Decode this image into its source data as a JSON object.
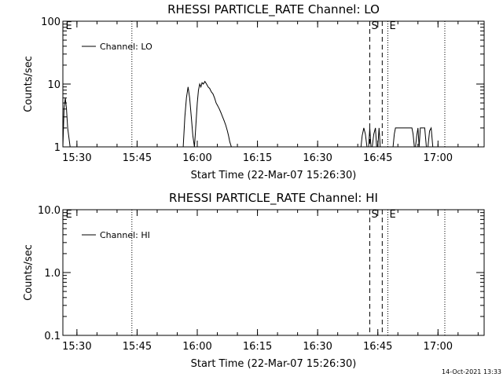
{
  "footer": {
    "timestamp": "14-Oct-2021 13:33"
  },
  "chart_data": [
    {
      "type": "line",
      "title": "RHESSI PARTICLE_RATE Channel: LO",
      "xlabel": "Start Time (22-Mar-07 15:26:30)",
      "ylabel": "Counts/sec",
      "yscale": "log",
      "ylim": [
        1,
        100
      ],
      "xlim_minutes_from_start": [
        0,
        105
      ],
      "x_ticks": [
        "15:30",
        "15:45",
        "16:00",
        "16:15",
        "16:30",
        "16:45",
        "17:00"
      ],
      "x_tick_minutes_from_start": [
        3.5,
        18.5,
        33.5,
        48.5,
        63.5,
        78.5,
        93.5
      ],
      "y_ticks": [
        "1",
        "10",
        "100"
      ],
      "y_tick_values": [
        1,
        10,
        100
      ],
      "legend": {
        "label": "Channel: LO",
        "position": "top-left"
      },
      "markers": [
        {
          "label": "E",
          "minute": 0.3,
          "style": "none",
          "text": true
        },
        {
          "label": "",
          "minute": 17.2,
          "style": "dotted",
          "text": false
        },
        {
          "label": "S",
          "minute": 76.5,
          "style": "dashed",
          "text": true
        },
        {
          "label": "",
          "minute": 79.6,
          "style": "dashed",
          "text": false
        },
        {
          "label": "E",
          "minute": 81.0,
          "style": "dotted",
          "text": true
        },
        {
          "label": "",
          "minute": 95.2,
          "style": "dotted",
          "text": false
        }
      ],
      "series": [
        {
          "name": "Channel: LO",
          "x": [
            0,
            0.3,
            0.6,
            0.9,
            1.2,
            1.5,
            1.8,
            2.1,
            30.0,
            30.4,
            30.8,
            31.2,
            31.6,
            32.0,
            32.4,
            32.8,
            33.0,
            33.5,
            33.8,
            34.1,
            34.4,
            34.7,
            35.0,
            35.4,
            35.8,
            36.2,
            36.6,
            37.0,
            37.4,
            37.8,
            38.2,
            38.6,
            39.0,
            39.4,
            39.8,
            40.2,
            40.6,
            41.0,
            41.3,
            41.6,
            42.0,
            74.3,
            74.6,
            75.0,
            75.4,
            75.8,
            76.2,
            76.5,
            76.8,
            77.1,
            77.5,
            77.9,
            78.2,
            78.5,
            78.8,
            79.1,
            82.3,
            82.6,
            82.9,
            83.3,
            83.7,
            84.1,
            84.5,
            85.0,
            85.5,
            86.0,
            86.5,
            87.0,
            87.3,
            87.6,
            87.9,
            88.2,
            88.5,
            88.8,
            89.1,
            89.4,
            89.8,
            90.2,
            90.6,
            91.0,
            91.4,
            91.8,
            92.2,
            92.5,
            92.8
          ],
          "y": [
            1,
            4,
            6,
            4,
            2,
            1.4,
            1,
            1,
            1,
            3,
            6,
            9,
            6,
            3,
            1.5,
            1,
            1.6,
            5,
            8,
            10,
            9,
            10.5,
            10,
            11,
            10,
            9,
            8.5,
            7.5,
            7,
            6,
            5,
            4.5,
            4,
            3.5,
            3,
            2.6,
            2.2,
            1.8,
            1.5,
            1.2,
            1,
            1,
            1.5,
            2,
            1.6,
            1,
            1,
            2,
            1,
            1,
            1.6,
            2,
            1,
            1,
            2,
            1,
            1,
            1.6,
            2,
            2,
            2,
            2,
            2,
            2,
            2,
            2,
            2,
            2,
            1.6,
            1,
            1,
            1.5,
            2,
            1,
            2,
            2,
            2,
            2,
            1,
            1,
            1.8,
            2,
            1,
            1,
            1
          ]
        }
      ]
    },
    {
      "type": "line",
      "title": "RHESSI PARTICLE_RATE Channel: HI",
      "xlabel": "Start Time (22-Mar-07 15:26:30)",
      "ylabel": "Counts/sec",
      "yscale": "log",
      "ylim": [
        0.1,
        10
      ],
      "xlim_minutes_from_start": [
        0,
        105
      ],
      "x_ticks": [
        "15:30",
        "15:45",
        "16:00",
        "16:15",
        "16:30",
        "16:45",
        "17:00"
      ],
      "x_tick_minutes_from_start": [
        3.5,
        18.5,
        33.5,
        48.5,
        63.5,
        78.5,
        93.5
      ],
      "y_ticks": [
        "0.1",
        "1.0",
        "10.0"
      ],
      "y_tick_values": [
        0.1,
        1,
        10
      ],
      "legend": {
        "label": "Channel: HI",
        "position": "top-left"
      },
      "markers": [
        {
          "label": "E",
          "minute": 0.3,
          "style": "none",
          "text": true
        },
        {
          "label": "",
          "minute": 17.2,
          "style": "dotted",
          "text": false
        },
        {
          "label": "S",
          "minute": 76.5,
          "style": "dashed",
          "text": true
        },
        {
          "label": "",
          "minute": 79.6,
          "style": "dashed",
          "text": false
        },
        {
          "label": "E",
          "minute": 81.0,
          "style": "dotted",
          "text": true
        },
        {
          "label": "",
          "minute": 95.2,
          "style": "dotted",
          "text": false
        }
      ],
      "series": [
        {
          "name": "Channel: HI",
          "x": [],
          "y": []
        }
      ]
    }
  ]
}
